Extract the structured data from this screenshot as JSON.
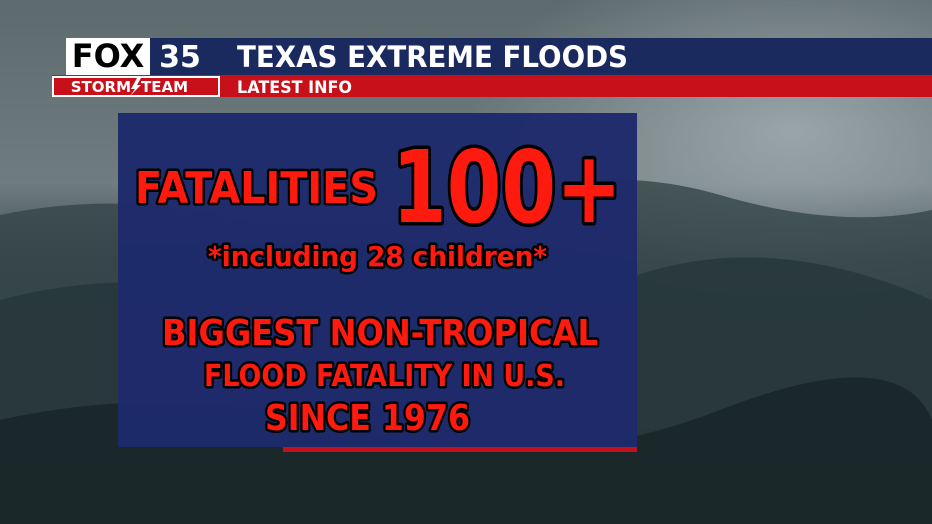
{
  "logo": {
    "brand": "FOX",
    "channel": "35",
    "team_left": "STORM",
    "team_right": "TEAM"
  },
  "header": {
    "title": "TEXAS EXTREME FLOODS",
    "subtitle": "LATEST INFO"
  },
  "panel": {
    "label": "FATALITIES",
    "figure": "100+",
    "note": "*including 28 children*",
    "headline": [
      "BIGGEST NON-TROPICAL",
      "FLOOD FATALITY IN U.S.",
      "SINCE 1976"
    ]
  }
}
